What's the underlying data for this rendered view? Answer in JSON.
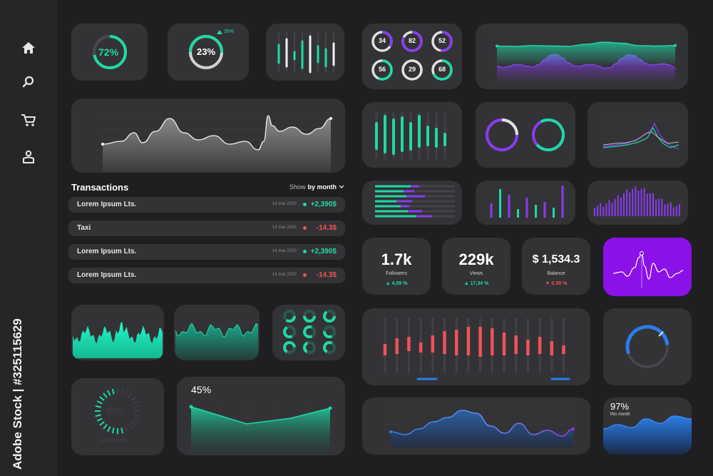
{
  "colors": {
    "teal": "#1fd9a6",
    "purple": "#8a3cf0",
    "red": "#f0525a",
    "blue": "#2a7de8",
    "card": "#333336",
    "bg": "#1f1f21"
  },
  "sidebar": {
    "items": [
      {
        "icon": "home-icon"
      },
      {
        "icon": "search-icon"
      },
      {
        "icon": "cart-icon"
      },
      {
        "icon": "user-icon"
      }
    ]
  },
  "kpi": {
    "ring1": "72%",
    "ring2": "23%",
    "ring2_change": "35%",
    "gauge45": "45%",
    "gauge55": "55%",
    "gauge55_caption": "Circle Graphic",
    "percent97": "97%",
    "percent97_caption": "this month"
  },
  "rings": [
    "34",
    "82",
    "52",
    "56",
    "29",
    "68"
  ],
  "transactions": {
    "title": "Transactions",
    "filter_prefix": "Show",
    "filter_value": "by month",
    "rows": [
      {
        "name": "Lorem Ipsum Lts.",
        "date": "14 mar 2020",
        "amount": "+2,390$"
      },
      {
        "name": "Taxi",
        "date": "14 mar 2020",
        "amount": "-14.3$"
      },
      {
        "name": "Lorem Ipsum Lts.",
        "date": "14 mar 2020",
        "amount": "+2,390$"
      },
      {
        "name": "Lorem Ipsum Lts.",
        "date": "14 mar 2020",
        "amount": "-14.3$"
      }
    ]
  },
  "stats": [
    {
      "value": "1.7k",
      "label": "Followers",
      "change": "4,09 %"
    },
    {
      "value": "229k",
      "label": "Views",
      "change": "17,34 %"
    },
    {
      "value": "$ 1,534.3",
      "label": "Balance",
      "change": "0.39 %"
    }
  ],
  "watermark": "Adobe Stock | #325115629"
}
